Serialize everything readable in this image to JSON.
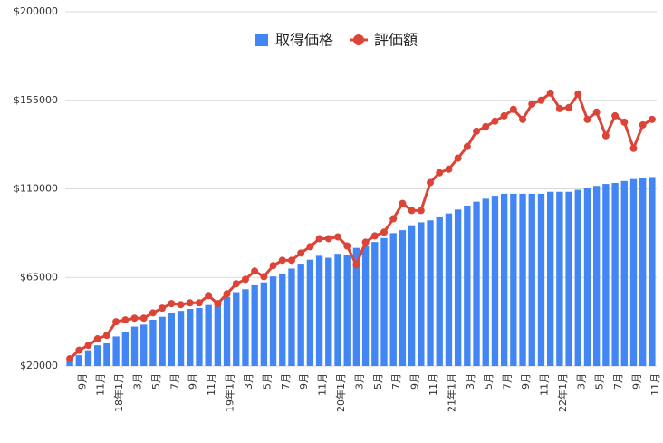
{
  "chart_data": {
    "type": "bar_line",
    "categories": [
      null,
      "9月",
      null,
      "11月",
      null,
      "18年1月",
      null,
      "3月",
      null,
      "5月",
      null,
      "7月",
      null,
      "9月",
      null,
      "11月",
      null,
      "19年1月",
      null,
      "3月",
      null,
      "5月",
      null,
      "7月",
      null,
      "9月",
      null,
      "11月",
      null,
      "20年1月",
      null,
      "3月",
      null,
      "5月",
      null,
      "7月",
      null,
      "9月",
      null,
      "11月",
      null,
      "21年1月",
      null,
      "3月",
      null,
      "5月",
      null,
      "7月",
      null,
      "9月",
      null,
      "11月",
      null,
      "22年1月",
      null,
      "3月",
      null,
      "5月",
      null,
      "7月",
      null,
      "9月",
      null,
      "11月"
    ],
    "series": [
      {
        "name": "取得価格",
        "color": "#4285f4",
        "kind": "bar",
        "values": [
          23000,
          25500,
          28000,
          30500,
          31500,
          35000,
          37500,
          40000,
          41000,
          43500,
          45000,
          47000,
          48000,
          49000,
          49500,
          51000,
          53000,
          55000,
          57500,
          59000,
          61000,
          62500,
          65500,
          67000,
          69500,
          72000,
          74000,
          76000,
          75000,
          77000,
          76500,
          80000,
          81000,
          83000,
          85000,
          87500,
          89000,
          91500,
          93000,
          94000,
          96000,
          97500,
          99500,
          101500,
          103500,
          105000,
          106500,
          107500,
          107500,
          107500,
          107500,
          107500,
          108500,
          108500,
          108500,
          109500,
          110500,
          111500,
          112500,
          113000,
          114000,
          115000,
          115500,
          116000
        ]
      },
      {
        "name": "評価額",
        "color": "#db4437",
        "kind": "line",
        "values": [
          23700,
          28000,
          30500,
          33800,
          35600,
          42500,
          43400,
          44300,
          44300,
          47000,
          49400,
          51700,
          51200,
          52100,
          52100,
          55800,
          51700,
          56700,
          61800,
          64000,
          68200,
          65400,
          71000,
          73700,
          73700,
          77400,
          80600,
          84700,
          84700,
          85600,
          81000,
          71400,
          82900,
          86100,
          88000,
          94800,
          102600,
          99000,
          99000,
          113200,
          118200,
          120000,
          125600,
          131500,
          139300,
          141600,
          144400,
          147100,
          150400,
          145300,
          153100,
          155000,
          158600,
          150800,
          151300,
          158200,
          145300,
          149000,
          137000,
          147100,
          143900,
          130600,
          142500,
          145300
        ]
      }
    ],
    "ylim": [
      20000,
      200000
    ],
    "yticks": [
      {
        "value": 20000,
        "label": "$20000"
      },
      {
        "value": 65000,
        "label": "$65000"
      },
      {
        "value": 110000,
        "label": "$110000"
      },
      {
        "value": 155000,
        "label": "$155000"
      },
      {
        "value": 200000,
        "label": "$200000"
      }
    ],
    "grid": true,
    "legend": "top"
  }
}
